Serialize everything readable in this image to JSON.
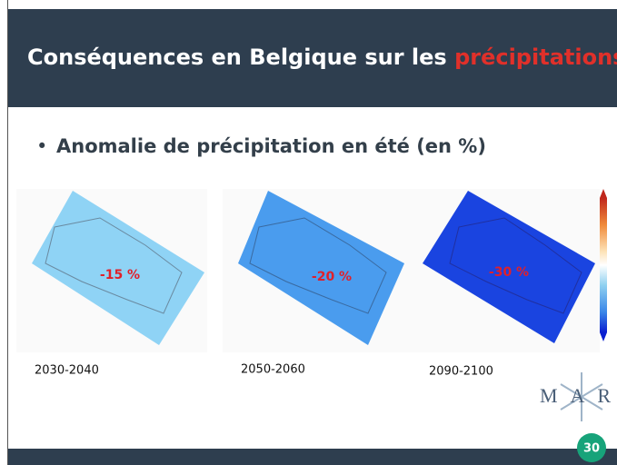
{
  "header": {
    "title": "Conséquences en Belgique sur les",
    "title_highlight": "précipitations"
  },
  "bullet": "Anomalie de précipitation en été (en %)",
  "maps": [
    {
      "anomaly": "-15 %",
      "period": "2030-2040"
    },
    {
      "anomaly": "-20 %",
      "period": "2050-2060"
    },
    {
      "anomaly": "-30 %",
      "period": "2090-2100"
    }
  ],
  "logo": "MAR",
  "page_number": "30"
}
